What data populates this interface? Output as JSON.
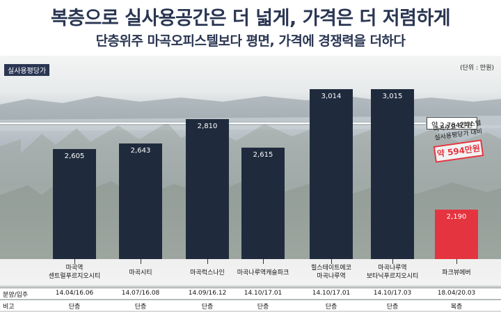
{
  "header": {
    "title": "복층으로 실사용공간은 더 넓게, 가격은 더 저렴하게",
    "subtitle": "단층위주 마곡오피스텔보다 평면, 가격에 경쟁력을 더하다"
  },
  "chart_data": {
    "type": "bar",
    "ylabel": "실사용평당가",
    "unit_note": "(단위 : 만원)",
    "categories": [
      "마곡역\n센트럴푸르지오시티",
      "마곡시티",
      "마곡럭스나인",
      "마곡나루역캐슬파크",
      "힐스테이트에코\n마곡나루역",
      "마곡나루역\n보타닉푸르지오시티",
      "파크뷰에버"
    ],
    "values": [
      2605,
      2643,
      2810,
      2615,
      3014,
      3015,
      2190
    ],
    "value_labels": [
      "2,605",
      "2,643",
      "2,810",
      "2,615",
      "3,014",
      "3,015",
      "2,190"
    ],
    "highlight_index": 6,
    "ylim": [
      1850,
      3150
    ],
    "reference_line": {
      "value": 2784,
      "label": "약 2,784만원"
    },
    "annotation": {
      "text": "마곡주요 오피스텔\n실사용평당가 대비",
      "badge": "약 594만원"
    },
    "colors": {
      "bar": "#1f2b3d",
      "highlight": "#e4343f",
      "reference": "#ffffff"
    }
  },
  "table": {
    "rows": [
      {
        "label": "분양/입주",
        "cells": [
          "14.04/16.06",
          "14.07/16.08",
          "14.09/16.12",
          "14.10/17.01",
          "14.10/17.01",
          "14.10/17.03",
          "18.04/20.03"
        ]
      },
      {
        "label": "비고",
        "cells": [
          "단층",
          "단층",
          "단층",
          "단층",
          "단층",
          "단층",
          "복층"
        ]
      }
    ]
  }
}
